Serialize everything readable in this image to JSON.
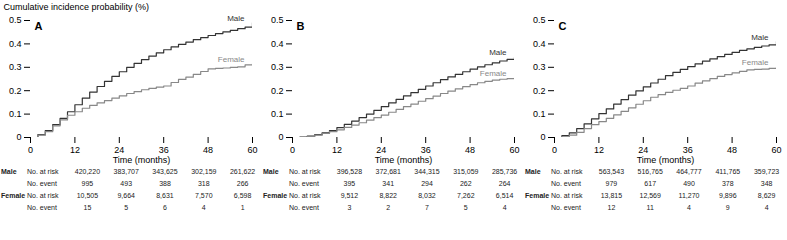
{
  "chart_data": [
    {
      "type": "line",
      "line_style": "step",
      "title": "A",
      "xlabel": "Time (months)",
      "ylabel": "Cumulative incidence probability (%)",
      "xlim": [
        0,
        60
      ],
      "xticks": [
        0,
        12,
        24,
        36,
        48,
        60
      ],
      "ylim": [
        0,
        0.5
      ],
      "yticks": [
        0,
        0.1,
        0.2,
        0.3,
        0.4,
        0.5
      ],
      "x": [
        0,
        2,
        4,
        6,
        8,
        10,
        12,
        14,
        16,
        18,
        20,
        22,
        24,
        26,
        28,
        30,
        32,
        34,
        36,
        38,
        40,
        42,
        44,
        46,
        48,
        50,
        52,
        54,
        56,
        58,
        60
      ],
      "series": [
        {
          "name": "Male",
          "color": "#333333",
          "values": [
            0,
            0.012,
            0.03,
            0.055,
            0.082,
            0.11,
            0.14,
            0.168,
            0.194,
            0.218,
            0.24,
            0.261,
            0.281,
            0.3,
            0.317,
            0.333,
            0.348,
            0.362,
            0.375,
            0.387,
            0.398,
            0.408,
            0.418,
            0.427,
            0.436,
            0.444,
            0.451,
            0.458,
            0.465,
            0.472,
            0.49
          ]
        },
        {
          "name": "Female",
          "color": "#888888",
          "values": [
            0,
            0.01,
            0.025,
            0.05,
            0.075,
            0.095,
            0.11,
            0.125,
            0.137,
            0.148,
            0.158,
            0.168,
            0.178,
            0.188,
            0.196,
            0.204,
            0.21,
            0.215,
            0.22,
            0.235,
            0.248,
            0.258,
            0.27,
            0.282,
            0.293,
            0.295,
            0.297,
            0.3,
            0.302,
            0.31,
            0.315
          ]
        }
      ],
      "risk_table": [
        {
          "group": "Male",
          "rows": [
            {
              "label": "No. at risk",
              "values": [
                "420,220",
                "383,707",
                "343,625",
                "302,159",
                "261,622"
              ]
            },
            {
              "label": "No. event",
              "values": [
                "995",
                "493",
                "388",
                "318",
                "266"
              ]
            }
          ]
        },
        {
          "group": "Female",
          "rows": [
            {
              "label": "No. at risk",
              "values": [
                "10,505",
                "9,664",
                "8,631",
                "7,570",
                "6,598"
              ]
            },
            {
              "label": "No. event",
              "values": [
                "15",
                "5",
                "6",
                "4",
                "1"
              ]
            }
          ]
        }
      ]
    },
    {
      "type": "line",
      "line_style": "step",
      "title": "B",
      "xlabel": "Time (months)",
      "xlim": [
        0,
        60
      ],
      "xticks": [
        0,
        12,
        24,
        36,
        48,
        60
      ],
      "ylim": [
        0,
        0.5
      ],
      "yticks": [
        0,
        0.1,
        0.2,
        0.3,
        0.4,
        0.5
      ],
      "x": [
        0,
        2,
        4,
        6,
        8,
        10,
        12,
        14,
        16,
        18,
        20,
        22,
        24,
        26,
        28,
        30,
        32,
        34,
        36,
        38,
        40,
        42,
        44,
        46,
        48,
        50,
        52,
        54,
        56,
        58,
        60
      ],
      "series": [
        {
          "name": "Male",
          "color": "#333333",
          "values": [
            0,
            0.002,
            0.006,
            0.012,
            0.02,
            0.03,
            0.042,
            0.056,
            0.07,
            0.085,
            0.1,
            0.116,
            0.132,
            0.148,
            0.163,
            0.178,
            0.192,
            0.206,
            0.22,
            0.234,
            0.247,
            0.259,
            0.27,
            0.281,
            0.292,
            0.302,
            0.311,
            0.319,
            0.327,
            0.334,
            0.342
          ]
        },
        {
          "name": "Female",
          "color": "#888888",
          "values": [
            0,
            0.001,
            0.004,
            0.01,
            0.017,
            0.025,
            0.033,
            0.043,
            0.053,
            0.063,
            0.074,
            0.085,
            0.096,
            0.108,
            0.12,
            0.132,
            0.143,
            0.155,
            0.166,
            0.177,
            0.188,
            0.198,
            0.208,
            0.217,
            0.226,
            0.234,
            0.24,
            0.245,
            0.249,
            0.252,
            0.255
          ]
        }
      ],
      "risk_table": [
        {
          "group": "Male",
          "rows": [
            {
              "label": "No. at risk",
              "values": [
                "396,528",
                "372,681",
                "344,315",
                "315,059",
                "285,736"
              ]
            },
            {
              "label": "No. event",
              "values": [
                "395",
                "341",
                "294",
                "262",
                "264"
              ]
            }
          ]
        },
        {
          "group": "Female",
          "rows": [
            {
              "label": "No. at risk",
              "values": [
                "9,512",
                "8,822",
                "8,032",
                "7,262",
                "6,514"
              ]
            },
            {
              "label": "No. event",
              "values": [
                "3",
                "2",
                "7",
                "5",
                "4"
              ]
            }
          ]
        }
      ]
    },
    {
      "type": "line",
      "line_style": "step",
      "title": "C",
      "xlabel": "Time (months)",
      "xlim": [
        0,
        60
      ],
      "xticks": [
        0,
        12,
        24,
        36,
        48,
        60
      ],
      "ylim": [
        0,
        0.5
      ],
      "yticks": [
        0,
        0.1,
        0.2,
        0.3,
        0.4,
        0.5
      ],
      "x": [
        0,
        2,
        4,
        6,
        8,
        10,
        12,
        14,
        16,
        18,
        20,
        22,
        24,
        26,
        28,
        30,
        32,
        34,
        36,
        38,
        40,
        42,
        44,
        46,
        48,
        50,
        52,
        54,
        56,
        58,
        60
      ],
      "series": [
        {
          "name": "Male",
          "color": "#333333",
          "values": [
            0,
            0.008,
            0.02,
            0.038,
            0.058,
            0.08,
            0.102,
            0.122,
            0.143,
            0.162,
            0.181,
            0.199,
            0.216,
            0.233,
            0.249,
            0.264,
            0.278,
            0.291,
            0.303,
            0.315,
            0.326,
            0.336,
            0.346,
            0.355,
            0.364,
            0.372,
            0.379,
            0.385,
            0.391,
            0.396,
            0.41
          ]
        },
        {
          "name": "Female",
          "color": "#888888",
          "values": [
            0,
            0.003,
            0.01,
            0.022,
            0.038,
            0.055,
            0.068,
            0.082,
            0.097,
            0.112,
            0.127,
            0.142,
            0.157,
            0.172,
            0.183,
            0.193,
            0.202,
            0.21,
            0.22,
            0.232,
            0.242,
            0.252,
            0.261,
            0.269,
            0.276,
            0.283,
            0.289,
            0.291,
            0.292,
            0.295,
            0.3
          ]
        }
      ],
      "risk_table": [
        {
          "group": "Male",
          "rows": [
            {
              "label": "No. at risk",
              "values": [
                "563,543",
                "516,765",
                "464,777",
                "411,765",
                "359,723"
              ]
            },
            {
              "label": "No. event",
              "values": [
                "979",
                "617",
                "490",
                "378",
                "348"
              ]
            }
          ]
        },
        {
          "group": "Female",
          "rows": [
            {
              "label": "No. at risk",
              "values": [
                "13,815",
                "12,569",
                "11,270",
                "9,896",
                "8,629"
              ]
            },
            {
              "label": "No. event",
              "values": [
                "12",
                "11",
                "4",
                "9",
                "4"
              ]
            }
          ]
        }
      ]
    }
  ]
}
